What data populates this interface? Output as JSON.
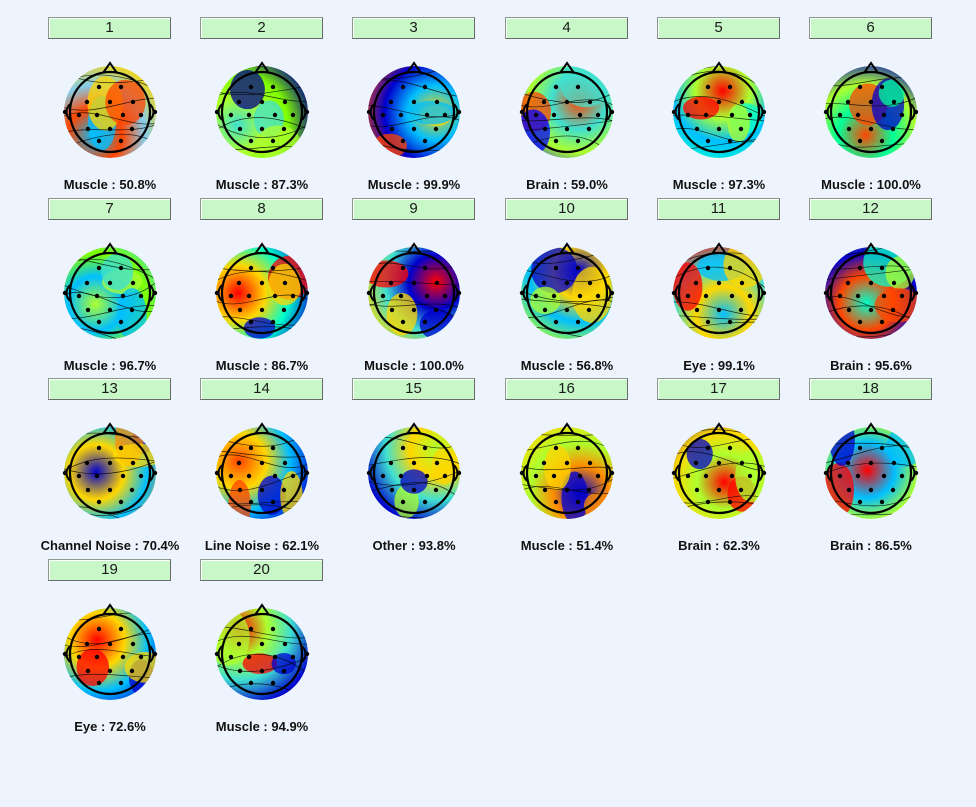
{
  "components": [
    {
      "number": "1",
      "label": "Muscle : 50.8%",
      "colors": [
        "#00bfff",
        "#ffd700",
        "#ff4500",
        "#87ceeb"
      ],
      "icon": "scalp-topomap-icon"
    },
    {
      "number": "2",
      "label": "Muscle : 87.3%",
      "colors": [
        "#40e0d0",
        "#00008b",
        "#adff2f",
        "#7fff00"
      ],
      "icon": "scalp-topomap-icon"
    },
    {
      "number": "3",
      "label": "Muscle : 99.9%",
      "colors": [
        "#ffd700",
        "#ff4500",
        "#00bfff",
        "#0000cd"
      ],
      "icon": "scalp-topomap-icon"
    },
    {
      "number": "4",
      "label": "Brain : 59.0%",
      "colors": [
        "#ff4500",
        "#0000ff",
        "#40e0d0",
        "#adff2f"
      ],
      "icon": "scalp-topomap-icon"
    },
    {
      "number": "5",
      "label": "Muscle : 97.3%",
      "colors": [
        "#ff0000",
        "#00ffcc",
        "#adff2f",
        "#00bfff"
      ],
      "icon": "scalp-topomap-icon"
    },
    {
      "number": "6",
      "label": "Muscle : 100.0%",
      "colors": [
        "#ff4500",
        "#0000cd",
        "#00ff99",
        "#adff2f"
      ],
      "icon": "scalp-topomap-icon"
    },
    {
      "number": "7",
      "label": "Muscle : 96.7%",
      "colors": [
        "#adff2f",
        "#40e0d0",
        "#00bfff",
        "#7fff00"
      ],
      "icon": "scalp-topomap-icon"
    },
    {
      "number": "8",
      "label": "Muscle : 86.7%",
      "colors": [
        "#ff0000",
        "#0000cd",
        "#ffd700",
        "#00ffcc"
      ],
      "icon": "scalp-topomap-icon"
    },
    {
      "number": "9",
      "label": "Muscle : 100.0%",
      "colors": [
        "#ff0000",
        "#ffd700",
        "#0000cd",
        "#40e0d0"
      ],
      "icon": "scalp-topomap-icon"
    },
    {
      "number": "10",
      "label": "Muscle : 56.8%",
      "colors": [
        "#0000cd",
        "#adff2f",
        "#ffd700",
        "#00bfff"
      ],
      "icon": "scalp-topomap-icon"
    },
    {
      "number": "11",
      "label": "Eye : 99.1%",
      "colors": [
        "#00bfff",
        "#ff0000",
        "#ffd700",
        "#40e0d0"
      ],
      "icon": "scalp-topomap-icon"
    },
    {
      "number": "12",
      "label": "Brain : 95.6%",
      "colors": [
        "#00ffcc",
        "#adff2f",
        "#ff4500",
        "#0000cd"
      ],
      "icon": "scalp-topomap-icon"
    },
    {
      "number": "13",
      "label": "Channel Noise : 70.4%",
      "colors": [
        "#0000cd",
        "#ff8c00",
        "#ffd700",
        "#00bfff"
      ],
      "icon": "scalp-topomap-icon"
    },
    {
      "number": "14",
      "label": "Line Noise : 62.1%",
      "colors": [
        "#ff4500",
        "#0000cd",
        "#ffd700",
        "#00bfff"
      ],
      "icon": "scalp-topomap-icon"
    },
    {
      "number": "15",
      "label": "Other : 93.8%",
      "colors": [
        "#adff2f",
        "#0000cd",
        "#ffd700",
        "#40e0d0"
      ],
      "icon": "scalp-topomap-icon"
    },
    {
      "number": "16",
      "label": "Muscle : 51.4%",
      "colors": [
        "#0000cd",
        "#ffd700",
        "#ff8c00",
        "#adff2f"
      ],
      "icon": "scalp-topomap-icon"
    },
    {
      "number": "17",
      "label": "Brain : 62.3%",
      "colors": [
        "#ff0000",
        "#0000cd",
        "#adff2f",
        "#ffd700"
      ],
      "icon": "scalp-topomap-icon"
    },
    {
      "number": "18",
      "label": "Brain : 86.5%",
      "colors": [
        "#ff0000",
        "#0000cd",
        "#00bfff",
        "#adff2f"
      ],
      "icon": "scalp-topomap-icon"
    },
    {
      "number": "19",
      "label": "Eye : 72.6%",
      "colors": [
        "#ff0000",
        "#0000cd",
        "#ffd700",
        "#00bfff"
      ],
      "icon": "scalp-topomap-icon"
    },
    {
      "number": "20",
      "label": "Muscle : 94.9%",
      "colors": [
        "#ff0000",
        "#0000cd",
        "#adff2f",
        "#40e0d0"
      ],
      "icon": "scalp-topomap-icon"
    }
  ]
}
